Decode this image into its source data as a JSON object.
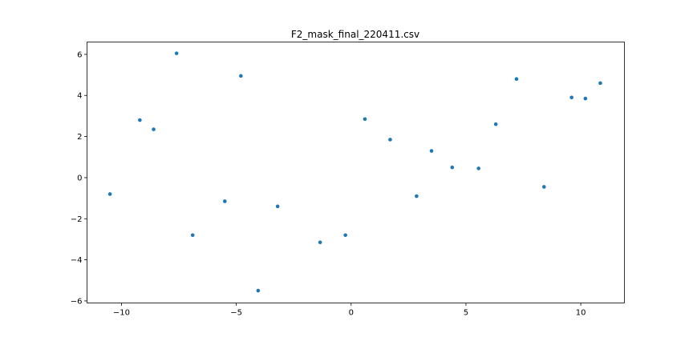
{
  "chart_data": {
    "type": "scatter",
    "title": "F2_mask_final_220411.csv",
    "xlabel": "",
    "ylabel": "",
    "xlim": [
      -11.5,
      11.9
    ],
    "ylim": [
      -6.1,
      6.6
    ],
    "xticks": [
      -10,
      -5,
      0,
      5,
      10
    ],
    "xtick_labels": [
      "−10",
      "−5",
      "0",
      "5",
      "10"
    ],
    "yticks": [
      -6,
      -4,
      -2,
      0,
      2,
      4,
      6
    ],
    "ytick_labels": [
      "−6",
      "−4",
      "−2",
      "0",
      "2",
      "4",
      "6"
    ],
    "grid": false,
    "legend": "none",
    "marker_color": "#1f77b4",
    "points": [
      {
        "x": -10.5,
        "y": -0.8
      },
      {
        "x": -9.2,
        "y": 2.8
      },
      {
        "x": -8.6,
        "y": 2.35
      },
      {
        "x": -7.6,
        "y": 6.05
      },
      {
        "x": -6.9,
        "y": -2.8
      },
      {
        "x": -5.5,
        "y": -1.15
      },
      {
        "x": -4.8,
        "y": 4.95
      },
      {
        "x": -4.05,
        "y": -5.5
      },
      {
        "x": -3.2,
        "y": -1.4
      },
      {
        "x": -1.35,
        "y": -3.15
      },
      {
        "x": -0.25,
        "y": -2.8
      },
      {
        "x": 0.6,
        "y": 2.85
      },
      {
        "x": 1.7,
        "y": 1.85
      },
      {
        "x": 2.85,
        "y": -0.9
      },
      {
        "x": 3.5,
        "y": 1.3
      },
      {
        "x": 4.4,
        "y": 0.5
      },
      {
        "x": 5.55,
        "y": 0.45
      },
      {
        "x": 6.3,
        "y": 2.6
      },
      {
        "x": 7.2,
        "y": 4.8
      },
      {
        "x": 8.4,
        "y": -0.45
      },
      {
        "x": 9.6,
        "y": 3.9
      },
      {
        "x": 10.2,
        "y": 3.85
      },
      {
        "x": 10.85,
        "y": 4.6
      }
    ]
  }
}
